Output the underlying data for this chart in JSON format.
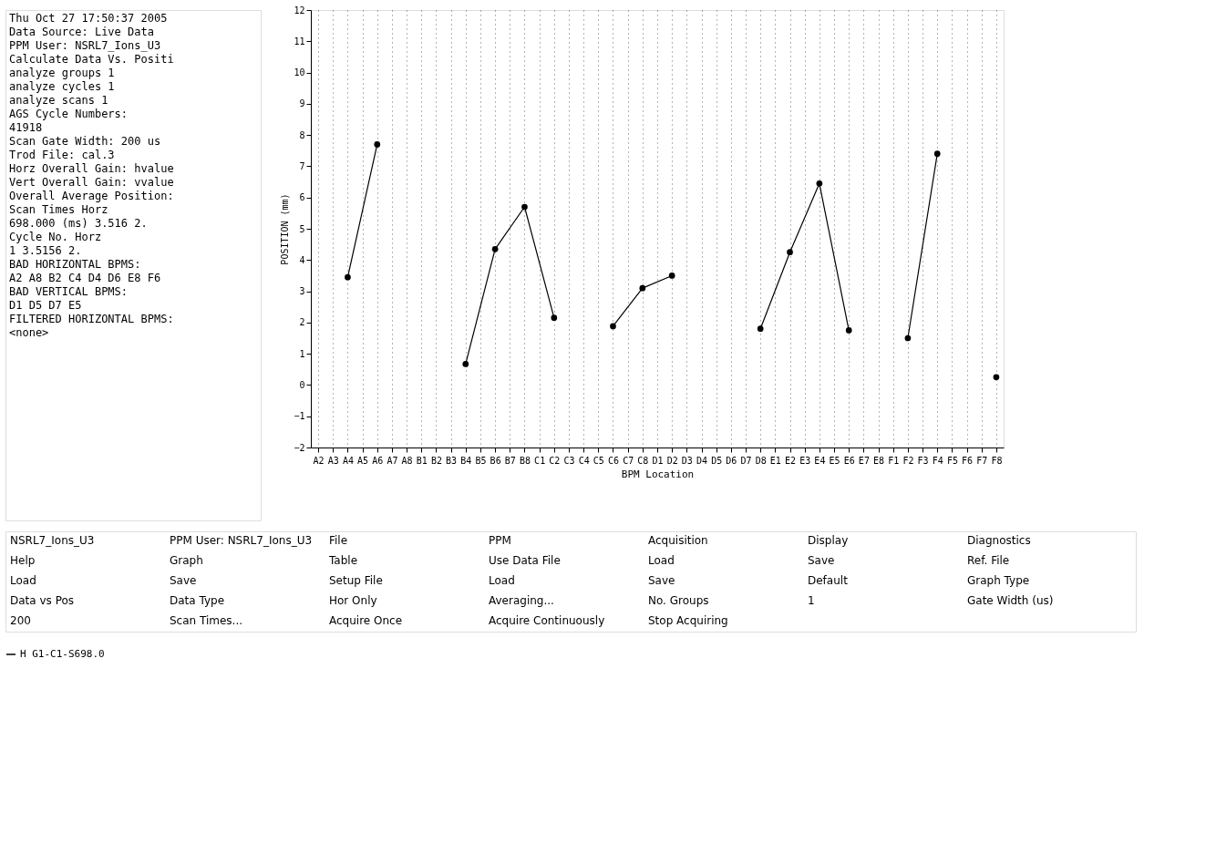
{
  "chart_data": {
    "type": "line",
    "xlabel": "BPM Location",
    "ylabel": "POSITION (mm)",
    "categories": [
      "A2",
      "A3",
      "A4",
      "A5",
      "A6",
      "A7",
      "A8",
      "B1",
      "B2",
      "B3",
      "B4",
      "B5",
      "B6",
      "B7",
      "B8",
      "C1",
      "C2",
      "C3",
      "C4",
      "C5",
      "C6",
      "C7",
      "C8",
      "D1",
      "D2",
      "D3",
      "D4",
      "D5",
      "D6",
      "D7",
      "D8",
      "E1",
      "E2",
      "E3",
      "E4",
      "E5",
      "E6",
      "E7",
      "E8",
      "F1",
      "F2",
      "F3",
      "F4",
      "F5",
      "F6",
      "F7",
      "F8"
    ],
    "series": [
      {
        "name": "H G1-C1-S698.0",
        "color": "#000000",
        "x": [
          "A2",
          "A4",
          "A6",
          "A8",
          "B2",
          "B4",
          "B6",
          "B8",
          "C2",
          "C4",
          "C6",
          "C8",
          "D2",
          "D4",
          "D6",
          "D8",
          "E2",
          "E4",
          "E6",
          "E8",
          "F2",
          "F4",
          "F6",
          "F8"
        ],
        "values": [
          null,
          3.45,
          7.7,
          null,
          null,
          0.67,
          4.35,
          5.7,
          2.15,
          null,
          1.88,
          3.1,
          3.5,
          null,
          null,
          1.8,
          4.25,
          6.45,
          1.75,
          null,
          1.5,
          7.4,
          null,
          0.25
        ]
      }
    ],
    "ylim": [
      -2,
      12
    ],
    "yticks": [
      -2,
      -1,
      0,
      1,
      2,
      3,
      4,
      5,
      6,
      7,
      8,
      9,
      10,
      11,
      12
    ],
    "grid": "x",
    "legend": "bottom",
    "marker": "circle",
    "line_style": "solid",
    "annotations": [
      "Thu Oct 27 17:50:37 2005\n\nData Source: Live Data\nPPM User: NSRL7_Ions_U3\n\nCalculate Data Vs. Positi\nanalyze groups 1\nanalyze cycles 1\nanalyze scans 1\n\n\nAGS Cycle Numbers:\n41918\n\nScan Gate Width: 200 us\n\nTrod File: cal.3\n\nHorz Overall Gain: hvalue\nVert Overall Gain: vvalue\n\nOverall Average Position:\n  Scan Times      Horz\n698.000 (ms)     3.516    2.\n\n   Cycle No.      Horz\n           1  3.5156    2.\n\nBAD HORIZONTAL BPMS:\nA2 A8 B2 C4 D4 D6 E8 F6\n\nBAD VERTICAL BPMS:\nD1 D5 D7 E5\n\nFILTERED HORIZONTAL BPMS:\n<none>",
      "NSRL7_Ions_U3",
      "PPM User: NSRL7_Ions_U3",
      "File",
      "PPM",
      "Acquisition",
      "Display",
      "Diagnostics",
      "Help",
      "Graph",
      "Table",
      "Use Data File",
      "Load",
      "Save",
      "Ref. File",
      "Load",
      "Save",
      "Setup File",
      "Load",
      "Save",
      "Default",
      "Graph Type",
      "Data vs Pos",
      "Data Type",
      "Hor Only",
      "Averaging...",
      "No. Groups",
      "1",
      "Gate Width (us)",
      "200",
      "Scan Times...",
      "Acquire Once",
      "Acquire Continuously",
      "Stop Acquiring"
    ]
  }
}
